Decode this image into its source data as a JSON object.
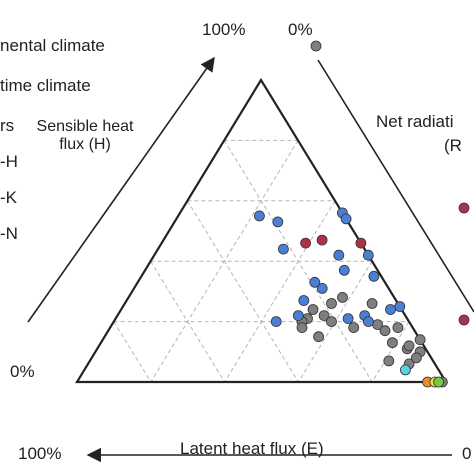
{
  "chart_data": {
    "type": "ternary-scatter",
    "title": "",
    "legend": {
      "placement": "top-left",
      "items": [
        "nental climate",
        "time climate",
        "rs",
        "-H",
        "-K",
        "-N"
      ]
    },
    "axes": {
      "sensible": {
        "label_line1": "Sensible heat",
        "label_line2": "flux (H)",
        "max_label": "100%",
        "min_label": "0%"
      },
      "latent": {
        "label": "Latent heat flux (E)",
        "max_label": "100%",
        "min_label": "0"
      },
      "net_radiation": {
        "label_line1": "Net radiati",
        "label_line2": "(R",
        "min_label": "0%"
      }
    },
    "grid": "dashed",
    "point_colors": {
      "gray": "#7f7f7f",
      "blue": "#4a7fd6",
      "red": "#b03048",
      "cyan": "#5bd0e0",
      "orange": "#ee8a2a",
      "yellow": "#e3e84a"
    },
    "series": [
      {
        "color": "blue",
        "points": [
          {
            "H": 0.56,
            "E": 0.0
          },
          {
            "H": 0.54,
            "E": 0.0
          },
          {
            "H": 0.55,
            "E": 0.23
          },
          {
            "H": 0.53,
            "E": 0.19
          },
          {
            "H": 0.44,
            "E": 0.22
          },
          {
            "H": 0.42,
            "E": 0.0
          },
          {
            "H": 0.42,
            "E": 0.08
          },
          {
            "H": 0.37,
            "E": 0.09
          },
          {
            "H": 0.35,
            "E": 0.02
          },
          {
            "H": 0.31,
            "E": 0.18
          },
          {
            "H": 0.27,
            "E": 0.25
          },
          {
            "H": 0.25,
            "E": 0.0
          },
          {
            "H": 0.24,
            "E": 0.03
          },
          {
            "H": 0.22,
            "E": 0.11
          },
          {
            "H": 0.2,
            "E": 0.11
          },
          {
            "H": 0.21,
            "E": 0.16
          },
          {
            "H": 0.22,
            "E": 0.29
          },
          {
            "H": 0.2,
            "E": 0.36
          },
          {
            "H": 0.33,
            "E": 0.19
          }
        ]
      },
      {
        "color": "gray",
        "points": [
          {
            "H": 0.26,
            "E": 0.07
          },
          {
            "H": 0.28,
            "E": 0.14
          },
          {
            "H": 0.26,
            "E": 0.18
          },
          {
            "H": 0.24,
            "E": 0.24
          },
          {
            "H": 0.22,
            "E": 0.22
          },
          {
            "H": 0.2,
            "E": 0.21
          },
          {
            "H": 0.21,
            "E": 0.27
          },
          {
            "H": 0.2,
            "E": 0.29
          },
          {
            "H": 0.18,
            "E": 0.3
          },
          {
            "H": 0.15,
            "E": 0.27
          },
          {
            "H": 0.18,
            "E": 0.16
          },
          {
            "H": 0.19,
            "E": 0.09
          },
          {
            "H": 0.18,
            "E": 0.04
          },
          {
            "H": 0.17,
            "E": 0.08
          },
          {
            "H": 0.14,
            "E": 0.0
          },
          {
            "H": 0.11,
            "E": 0.05
          },
          {
            "H": 0.1,
            "E": 0.02
          },
          {
            "H": 0.06,
            "E": 0.07
          },
          {
            "H": 0.08,
            "E": 0.04
          },
          {
            "H": 0.12,
            "E": 0.04
          },
          {
            "H": 0.13,
            "E": 0.08
          },
          {
            "H": 0.07,
            "E": 0.12
          },
          {
            "H": 0.0,
            "E": 0.01
          }
        ]
      },
      {
        "color": "red",
        "points": [
          {
            "H": 0.47,
            "E": 0.1
          },
          {
            "H": 0.46,
            "E": 0.15
          },
          {
            "H": 0.46,
            "E": 0.0
          }
        ]
      },
      {
        "color": "cyan",
        "points": [
          {
            "H": 0.04,
            "E": 0.09
          }
        ]
      },
      {
        "color": "orange",
        "points": [
          {
            "H": 0.0,
            "E": 0.05
          }
        ]
      },
      {
        "color": "yellow",
        "points": [
          {
            "H": 0.0,
            "E": 0.03
          }
        ]
      },
      {
        "color": "green",
        "points": [
          {
            "H": 0.0,
            "E": 0.02
          }
        ]
      }
    ],
    "offscreen_points": [
      {
        "color": "gray"
      },
      {
        "color": "red"
      },
      {
        "color": "red"
      }
    ]
  }
}
